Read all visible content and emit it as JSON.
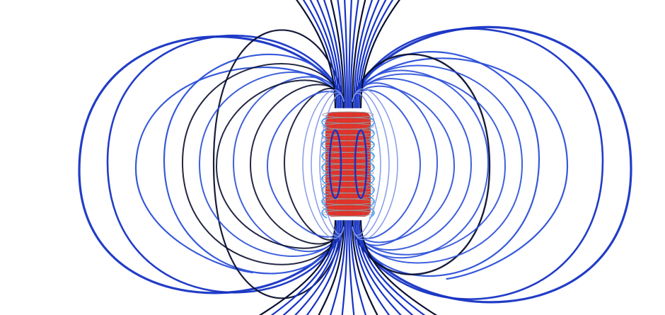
{
  "scene": {
    "subject": "solenoid-magnetic-field-lines",
    "colors": {
      "background": "#ffffff",
      "field_line_outer": "#1633c4",
      "field_line_mid": "#2a4fd8",
      "field_line_dark": "#0b1030",
      "field_line_light": "#7f96e8",
      "coil_red": "#d0201a",
      "coil_blue": "#3aa0ff",
      "coil_grey": "#9a9a9a"
    }
  }
}
